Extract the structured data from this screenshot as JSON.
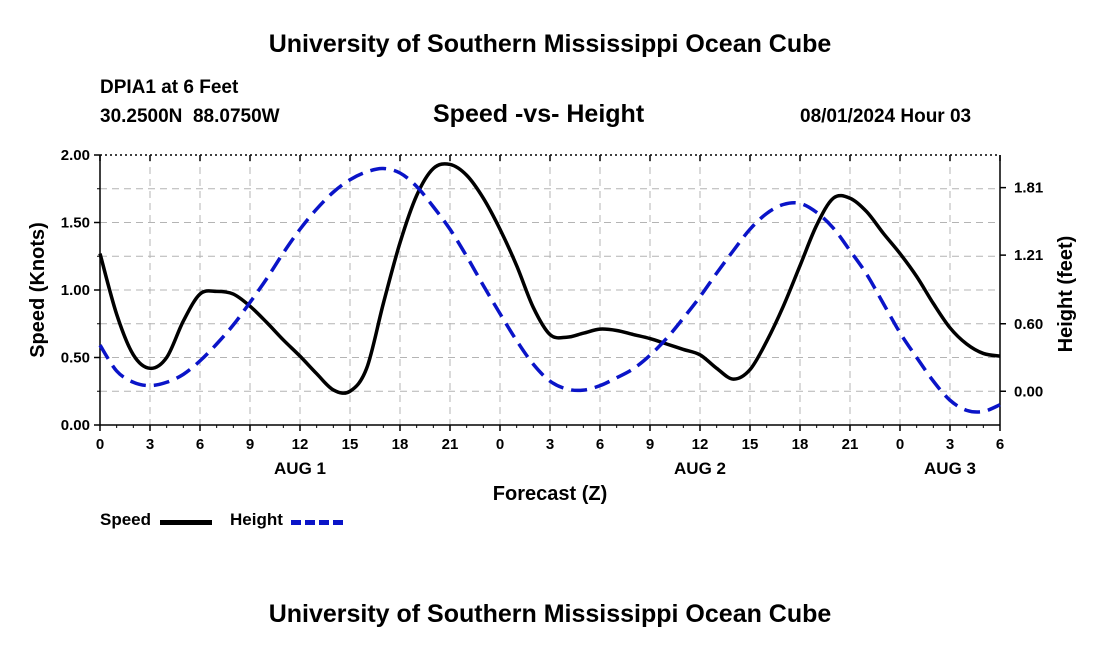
{
  "header": {
    "title": "University of Southern Mississippi Ocean Cube",
    "station": "DPIA1 at 6 Feet",
    "coords": "30.2500N  88.0750W",
    "plot_title": "Speed -vs- Height",
    "datetime": "08/01/2024 Hour 03"
  },
  "footer": {
    "title": "University of Southern Mississippi Ocean Cube"
  },
  "legend": {
    "items": [
      {
        "label": "Speed",
        "color": "#000000",
        "dash": false
      },
      {
        "label": "Height",
        "color": "#0a14c8",
        "dash": true
      }
    ]
  },
  "chart_data": {
    "type": "line",
    "title": "Speed -vs- Height",
    "xlabel": "Forecast (Z)",
    "ylabel_left": "Speed (Knots)",
    "ylabel_right": "Height (feet)",
    "xlim": [
      0,
      54
    ],
    "ylim_left": [
      0,
      2
    ],
    "ylim_right": [
      -0.3,
      2.1
    ],
    "left_ticks": [
      "0.00",
      "0.50",
      "1.00",
      "1.50",
      "2.00"
    ],
    "right_ticks": [
      "0.00",
      "0.60",
      "1.21",
      "1.81"
    ],
    "right_tick_values": [
      0.0,
      0.6,
      1.21,
      1.81
    ],
    "x_ticks": [
      "0",
      "3",
      "6",
      "9",
      "12",
      "15",
      "18",
      "21",
      "0",
      "3",
      "6",
      "9",
      "12",
      "15",
      "18",
      "21",
      "0",
      "3",
      "6"
    ],
    "date_labels": [
      {
        "label": "AUG 1",
        "x": 12
      },
      {
        "label": "AUG 2",
        "x": 36
      },
      {
        "label": "AUG 3",
        "x": 51
      }
    ],
    "grid": true,
    "series": [
      {
        "name": "Speed",
        "axis": "left",
        "color": "#000000",
        "dashed": false,
        "x": [
          0,
          1,
          2,
          3,
          4,
          5,
          6,
          7,
          8,
          9,
          10,
          11,
          12,
          13,
          14,
          15,
          16,
          17,
          18,
          19,
          20,
          21,
          22,
          23,
          24,
          25,
          26,
          27,
          28,
          29,
          30,
          31,
          32,
          33,
          34,
          35,
          36,
          37,
          38,
          39,
          40,
          41,
          42,
          43,
          44,
          45,
          46,
          47,
          48,
          49,
          50,
          51,
          52,
          53,
          54
        ],
        "values": [
          1.27,
          0.82,
          0.52,
          0.42,
          0.5,
          0.77,
          0.97,
          0.99,
          0.97,
          0.88,
          0.76,
          0.63,
          0.51,
          0.38,
          0.26,
          0.25,
          0.42,
          0.9,
          1.35,
          1.7,
          1.9,
          1.93,
          1.85,
          1.68,
          1.45,
          1.18,
          0.87,
          0.67,
          0.65,
          0.68,
          0.71,
          0.7,
          0.67,
          0.64,
          0.6,
          0.56,
          0.52,
          0.42,
          0.34,
          0.41,
          0.62,
          0.88,
          1.18,
          1.48,
          1.68,
          1.68,
          1.58,
          1.42,
          1.27,
          1.1,
          0.9,
          0.72,
          0.6,
          0.53,
          0.51
        ]
      },
      {
        "name": "Height",
        "axis": "right",
        "color": "#0a14c8",
        "dashed": true,
        "x": [
          0,
          1,
          2,
          3,
          4,
          5,
          6,
          7,
          8,
          9,
          10,
          11,
          12,
          13,
          14,
          15,
          16,
          17,
          18,
          19,
          20,
          21,
          22,
          23,
          24,
          25,
          26,
          27,
          28,
          29,
          30,
          31,
          32,
          33,
          34,
          35,
          36,
          37,
          38,
          39,
          40,
          41,
          42,
          43,
          44,
          45,
          46,
          47,
          48,
          49,
          50,
          51,
          52,
          53,
          54
        ],
        "values": [
          0.41,
          0.18,
          0.08,
          0.05,
          0.08,
          0.15,
          0.27,
          0.42,
          0.59,
          0.79,
          1.0,
          1.23,
          1.44,
          1.62,
          1.77,
          1.88,
          1.95,
          1.98,
          1.94,
          1.82,
          1.64,
          1.44,
          1.2,
          0.94,
          0.69,
          0.45,
          0.24,
          0.09,
          0.02,
          0.01,
          0.05,
          0.12,
          0.2,
          0.32,
          0.47,
          0.65,
          0.84,
          1.05,
          1.25,
          1.44,
          1.58,
          1.66,
          1.67,
          1.59,
          1.45,
          1.25,
          1.04,
          0.78,
          0.52,
          0.3,
          0.09,
          -0.08,
          -0.17,
          -0.18,
          -0.12
        ]
      }
    ]
  }
}
